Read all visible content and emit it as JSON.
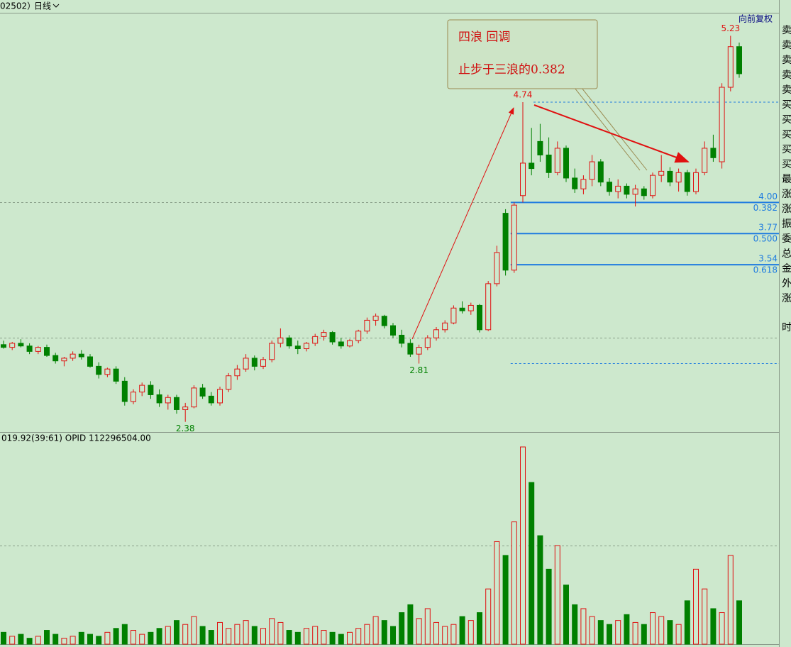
{
  "header": {
    "code": "02502）",
    "period": "日线",
    "adjust": "向前复权"
  },
  "chart_data": {
    "type": "candlestick",
    "ylim": [
      2.31,
      5.4
    ],
    "grid_levels": [
      3,
      4
    ],
    "up_color": "#e01010",
    "down_color": "#008000",
    "candles": [
      [
        2.95,
        2.98,
        2.92,
        2.93
      ],
      [
        2.93,
        2.97,
        2.91,
        2.96
      ],
      [
        2.96,
        2.99,
        2.93,
        2.94
      ],
      [
        2.94,
        2.96,
        2.88,
        2.9
      ],
      [
        2.9,
        2.94,
        2.88,
        2.93
      ],
      [
        2.93,
        2.95,
        2.86,
        2.87
      ],
      [
        2.87,
        2.89,
        2.81,
        2.83
      ],
      [
        2.83,
        2.86,
        2.79,
        2.85
      ],
      [
        2.85,
        2.9,
        2.83,
        2.88
      ],
      [
        2.88,
        2.91,
        2.84,
        2.86
      ],
      [
        2.86,
        2.88,
        2.78,
        2.79
      ],
      [
        2.79,
        2.82,
        2.7,
        2.73
      ],
      [
        2.73,
        2.78,
        2.71,
        2.77
      ],
      [
        2.77,
        2.79,
        2.66,
        2.68
      ],
      [
        2.68,
        2.71,
        2.5,
        2.53
      ],
      [
        2.53,
        2.62,
        2.51,
        2.6
      ],
      [
        2.6,
        2.67,
        2.57,
        2.65
      ],
      [
        2.65,
        2.68,
        2.55,
        2.58
      ],
      [
        2.58,
        2.62,
        2.49,
        2.52
      ],
      [
        2.52,
        2.58,
        2.47,
        2.56
      ],
      [
        2.56,
        2.58,
        2.44,
        2.47
      ],
      [
        2.47,
        2.52,
        2.38,
        2.49
      ],
      [
        2.49,
        2.65,
        2.48,
        2.63
      ],
      [
        2.63,
        2.66,
        2.55,
        2.57
      ],
      [
        2.57,
        2.6,
        2.5,
        2.52
      ],
      [
        2.52,
        2.64,
        2.5,
        2.62
      ],
      [
        2.62,
        2.74,
        2.6,
        2.72
      ],
      [
        2.72,
        2.8,
        2.69,
        2.77
      ],
      [
        2.77,
        2.88,
        2.75,
        2.85
      ],
      [
        2.85,
        2.87,
        2.76,
        2.79
      ],
      [
        2.79,
        2.86,
        2.77,
        2.84
      ],
      [
        2.84,
        2.98,
        2.82,
        2.96
      ],
      [
        2.96,
        3.07,
        2.93,
        3.0
      ],
      [
        3.0,
        3.02,
        2.92,
        2.94
      ],
      [
        2.94,
        2.98,
        2.88,
        2.92
      ],
      [
        2.92,
        2.97,
        2.9,
        2.96
      ],
      [
        2.96,
        3.03,
        2.94,
        3.01
      ],
      [
        3.01,
        3.06,
        2.98,
        3.04
      ],
      [
        3.04,
        3.05,
        2.95,
        2.97
      ],
      [
        2.97,
        3.0,
        2.92,
        2.94
      ],
      [
        2.94,
        2.99,
        2.93,
        2.98
      ],
      [
        2.98,
        3.06,
        2.96,
        3.05
      ],
      [
        3.05,
        3.15,
        3.03,
        3.13
      ],
      [
        3.13,
        3.18,
        3.09,
        3.16
      ],
      [
        3.16,
        3.17,
        3.07,
        3.09
      ],
      [
        3.09,
        3.11,
        3.0,
        3.02
      ],
      [
        3.02,
        3.06,
        2.93,
        2.96
      ],
      [
        2.96,
        2.99,
        2.86,
        2.88
      ],
      [
        2.88,
        2.95,
        2.81,
        2.93
      ],
      [
        2.93,
        3.02,
        2.91,
        3.0
      ],
      [
        3.0,
        3.08,
        2.98,
        3.06
      ],
      [
        3.06,
        3.13,
        3.04,
        3.11
      ],
      [
        3.11,
        3.24,
        3.1,
        3.22
      ],
      [
        3.22,
        3.27,
        3.18,
        3.2
      ],
      [
        3.2,
        3.26,
        3.17,
        3.24
      ],
      [
        3.24,
        3.25,
        3.04,
        3.06
      ],
      [
        3.06,
        3.42,
        3.05,
        3.4
      ],
      [
        3.4,
        3.68,
        3.38,
        3.63
      ],
      [
        3.92,
        3.95,
        3.46,
        3.5
      ],
      [
        3.5,
        4.0,
        3.48,
        3.98
      ],
      [
        4.05,
        4.74,
        4.0,
        4.29
      ],
      [
        4.29,
        4.55,
        4.2,
        4.25
      ],
      [
        4.45,
        4.58,
        4.3,
        4.35
      ],
      [
        4.35,
        4.48,
        4.18,
        4.22
      ],
      [
        4.22,
        4.45,
        4.2,
        4.4
      ],
      [
        4.4,
        4.42,
        4.15,
        4.18
      ],
      [
        4.18,
        4.25,
        4.07,
        4.1
      ],
      [
        4.1,
        4.2,
        4.06,
        4.17
      ],
      [
        4.17,
        4.35,
        4.12,
        4.3
      ],
      [
        4.3,
        4.32,
        4.12,
        4.15
      ],
      [
        4.15,
        4.18,
        4.05,
        4.08
      ],
      [
        4.08,
        4.17,
        4.03,
        4.12
      ],
      [
        4.12,
        4.14,
        4.03,
        4.06
      ],
      [
        4.06,
        4.13,
        3.97,
        4.1
      ],
      [
        4.1,
        4.12,
        4.02,
        4.05
      ],
      [
        4.05,
        4.22,
        4.03,
        4.2
      ],
      [
        4.2,
        4.35,
        4.15,
        4.23
      ],
      [
        4.23,
        4.26,
        4.12,
        4.15
      ],
      [
        4.15,
        4.25,
        4.08,
        4.22
      ],
      [
        4.22,
        4.24,
        4.05,
        4.08
      ],
      [
        4.08,
        4.25,
        4.06,
        4.22
      ],
      [
        4.22,
        4.45,
        4.2,
        4.4
      ],
      [
        4.4,
        4.5,
        4.3,
        4.33
      ],
      [
        4.3,
        4.88,
        4.25,
        4.85
      ],
      [
        4.85,
        5.23,
        4.82,
        5.15
      ],
      [
        5.15,
        5.18,
        4.92,
        4.95
      ]
    ],
    "fib_levels": {
      "values": [
        4.0,
        3.77,
        3.54
      ],
      "value_labels": [
        "4.00",
        "3.77",
        "3.54"
      ],
      "ratios": [
        0.382,
        0.5,
        0.618
      ],
      "ratio_labels": [
        "0.382",
        "0.500",
        "0.618"
      ],
      "color": "#1e7be0"
    },
    "annotation": {
      "line1": "四浪  回调",
      "line2": "止步于三浪的0.382"
    },
    "volume": {
      "header": "019.92(39:61)  OPID 112296504.00",
      "vlim": [
        0,
        100
      ],
      "grid_levels": [
        50
      ],
      "values": [
        6,
        4,
        5,
        3,
        4,
        7,
        5,
        3,
        4,
        6,
        5,
        4,
        6,
        8,
        10,
        7,
        5,
        6,
        8,
        9,
        12,
        10,
        14,
        9,
        7,
        11,
        8,
        10,
        12,
        9,
        8,
        13,
        11,
        7,
        6,
        8,
        9,
        7,
        6,
        5,
        6,
        8,
        10,
        14,
        12,
        9,
        16,
        20,
        13,
        18,
        11,
        9,
        10,
        14,
        12,
        16,
        28,
        52,
        45,
        62,
        100,
        82,
        55,
        38,
        50,
        30,
        20,
        18,
        14,
        12,
        10,
        12,
        15,
        11,
        10,
        16,
        14,
        12,
        10,
        22,
        38,
        28,
        18,
        16,
        45,
        22
      ]
    }
  },
  "side_panel": {
    "labels": [
      "卖",
      "卖",
      "卖",
      "卖",
      "卖",
      "买",
      "买",
      "买",
      "买",
      "买",
      "最",
      "涨",
      "涨",
      "振",
      "委",
      "总",
      "金",
      "外",
      "涨",
      "时"
    ]
  }
}
